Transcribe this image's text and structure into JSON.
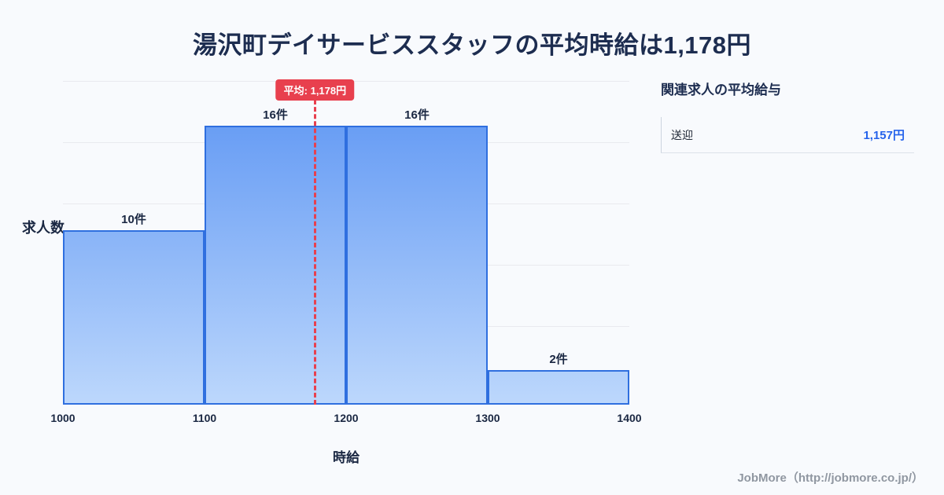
{
  "page": {
    "title": "湯沢町デイサービススタッフの平均時給は1,178円",
    "footer": "JobMore（http://jobmore.co.jp/）"
  },
  "colors": {
    "background": "#f8fafd",
    "title": "#1d2d50",
    "bar_top": "#5b94f3",
    "bar_bottom": "#bcd7fc",
    "bar_border": "#2f6fdf",
    "grid": "#e9eaef",
    "average_red": "#e8404e",
    "value_blue": "#2563eb",
    "footer_gray": "#9097a1",
    "text_dark": "#1a2742"
  },
  "chart_data": {
    "type": "bar",
    "title": "湯沢町デイサービススタッフの平均時給は1,178円",
    "xlabel": "時給",
    "ylabel": "求人数",
    "categories": [
      "1000-1100",
      "1100-1200",
      "1200-1300",
      "1300-1400"
    ],
    "values": [
      10,
      16,
      16,
      2
    ],
    "bar_labels": [
      "10件",
      "16件",
      "16件",
      "2件"
    ],
    "x_ticks": [
      "1000",
      "1100",
      "1200",
      "1300",
      "1400"
    ],
    "x_range": [
      1000,
      1400
    ],
    "ylim": [
      0,
      18.56
    ],
    "grid": true,
    "legend": "none",
    "average": {
      "value": 1178,
      "label": "平均: 1,178円"
    }
  },
  "sidebar": {
    "title": "関連求人の平均給与",
    "items": [
      {
        "label": "送迎",
        "value": "1,157円"
      }
    ]
  }
}
